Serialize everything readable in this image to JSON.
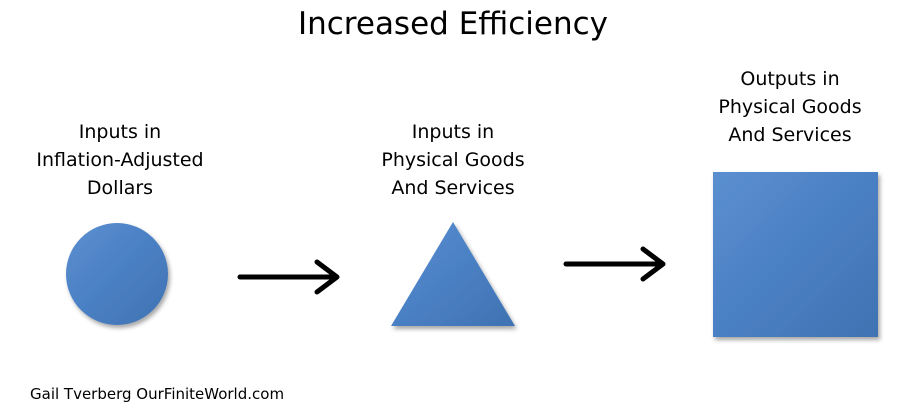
{
  "title": "Increased Efficiency",
  "nodes": [
    {
      "label": [
        "Inputs in",
        "Inflation-Adjusted",
        "Dollars"
      ]
    },
    {
      "label": [
        "Inputs in",
        "Physical Goods",
        "And Services"
      ]
    },
    {
      "label": [
        "Outputs in",
        "Physical Goods",
        "And Services"
      ]
    }
  ],
  "credit": "Gail Tverberg OurFiniteWorld.com"
}
